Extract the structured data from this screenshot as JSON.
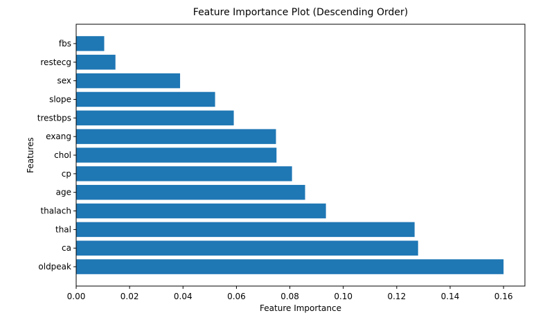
{
  "chart_data": {
    "type": "bar",
    "orientation": "horizontal",
    "title": "Feature Importance Plot (Descending Order)",
    "xlabel": "Feature Importance",
    "ylabel": "Features",
    "categories": [
      "fbs",
      "restecg",
      "sex",
      "slope",
      "trestbps",
      "exang",
      "chol",
      "cp",
      "age",
      "thalach",
      "thal",
      "ca",
      "oldpeak"
    ],
    "values": [
      0.0105,
      0.0147,
      0.0389,
      0.052,
      0.059,
      0.0748,
      0.075,
      0.0808,
      0.0857,
      0.0935,
      0.1267,
      0.128,
      0.16
    ],
    "xlim": [
      0,
      0.168
    ],
    "xticks": [
      0.0,
      0.02,
      0.04,
      0.06,
      0.08,
      0.1,
      0.12,
      0.14,
      0.16
    ],
    "xtick_labels": [
      "0.00",
      "0.02",
      "0.04",
      "0.06",
      "0.08",
      "0.10",
      "0.12",
      "0.14",
      "0.16"
    ],
    "grid": false,
    "bar_color": "#1f77b4"
  }
}
